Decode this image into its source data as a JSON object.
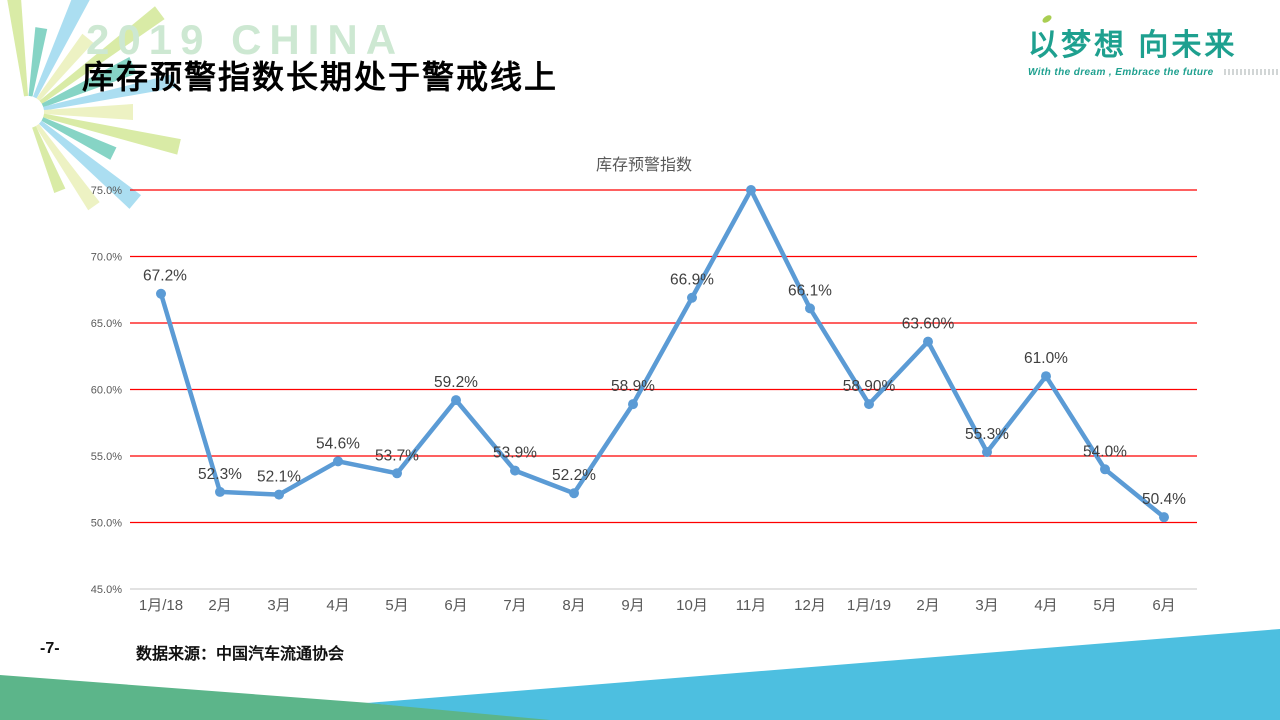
{
  "header": {
    "watermark": "2019 CHINA",
    "title": "库存预警指数长期处于警戒线上",
    "logo": {
      "slogan_cn": "以梦想  向未来",
      "slogan_en": "With the dream , Embrace the future"
    }
  },
  "footer": {
    "page_number": "-7-",
    "source": "数据来源：中国汽车流通协会"
  },
  "chart_data": {
    "type": "line",
    "title": "库存预警指数",
    "categories": [
      "1月/18",
      "2月",
      "3月",
      "4月",
      "5月",
      "6月",
      "7月",
      "8月",
      "9月",
      "10月",
      "11月",
      "12月",
      "1月/19",
      "2月",
      "3月",
      "4月",
      "5月",
      "6月"
    ],
    "values": [
      67.2,
      52.3,
      52.1,
      54.6,
      53.7,
      59.2,
      53.9,
      52.2,
      58.9,
      66.9,
      75.0,
      66.1,
      58.9,
      63.6,
      55.3,
      61.0,
      54.0,
      50.4
    ],
    "point_labels": [
      "67.2%",
      "52.3%",
      "52.1%",
      "54.6%",
      "53.7%",
      "59.2%",
      "53.9%",
      "52.2%",
      "58.9%",
      "66.9%",
      null,
      "66.1%",
      "58.90%",
      "63.60%",
      "55.3%",
      "61.0%",
      "54.0%",
      "50.4%"
    ],
    "xlabel": "",
    "ylabel": "",
    "ylim": [
      45,
      75
    ],
    "yticks": [
      75,
      70,
      65,
      60,
      55,
      50,
      45
    ],
    "ytick_labels": [
      "75.0%",
      "70.0%",
      "65.0%",
      "60.0%",
      "55.0%",
      "50.0%",
      "45.0%"
    ],
    "grid": "horizontal-red-lines, gray baseline at 45%",
    "legend": "none",
    "colors": {
      "line": "#5B9BD5",
      "grid": "#FE0000",
      "baseline": "#D9D9D9",
      "tick_text": "#595959",
      "label_text": "#3F3F3F"
    }
  },
  "decor": {
    "wave_green": "#5CB58A",
    "wave_blue": "#4DBFE0",
    "brand_teal": "#1EA08F",
    "leaf_accent": "#A9CE52",
    "watermark_color": "#CDE8D2",
    "starburst_colors": [
      "#D9EBA6",
      "#86D4C5",
      "#ABDEF1",
      "#EDF2C3"
    ]
  }
}
